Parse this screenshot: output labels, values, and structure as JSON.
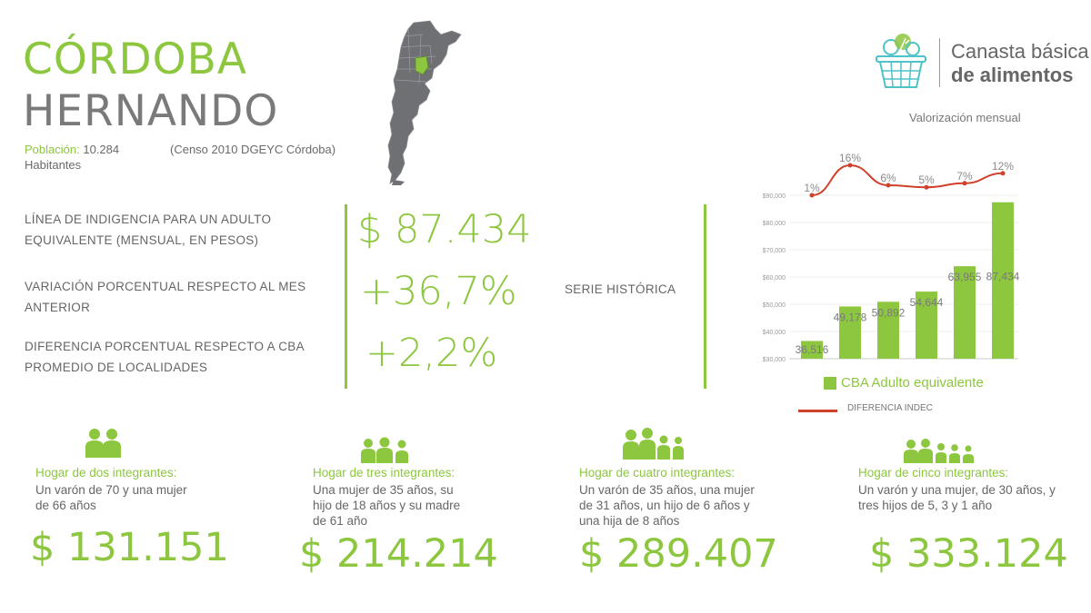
{
  "header": {
    "province": "CÓRDOBA",
    "department": "HERNANDO",
    "population_label": "Población:",
    "population_value": "10.284",
    "population_unit": "Habitantes",
    "census_source": "(Censo 2010 DGEYC Córdoba)"
  },
  "brand": {
    "line1": "Canasta básica",
    "line2": "de alimentos"
  },
  "chart_caption": "Valorización mensual",
  "indicators": [
    {
      "label": "LÍNEA DE INDIGENCIA PARA UN ADULTO EQUIVALENTE (MENSUAL, EN PESOS)",
      "value": "$ 87.434"
    },
    {
      "label": "VARIACIÓN PORCENTUAL RESPECTO AL MES ANTERIOR",
      "value": "+36,7%"
    },
    {
      "label": "DIFERENCIA PORCENTUAL RESPECTO A CBA PROMEDIO DE LOCALIDADES",
      "value": "+2,2%"
    }
  ],
  "serie_historica_label": "SERIE HISTÓRICA",
  "chart_data": {
    "type": "bar",
    "categories": [
      "",
      "",
      "",
      "",
      "",
      ""
    ],
    "series": [
      {
        "name": "CBA Adulto equivalente",
        "values": [
          36516,
          49178,
          50892,
          54644,
          63955,
          87434
        ]
      },
      {
        "name": "DIFERENCIA INDEC",
        "type": "line",
        "values": [
          1,
          16,
          6,
          5,
          7,
          12
        ]
      }
    ],
    "bar_labels": [
      "36,516",
      "49,178",
      "50,892",
      "54,644",
      "63,955",
      "87,434"
    ],
    "line_labels": [
      "1%",
      "16%",
      "6%",
      "5%",
      "7%",
      "12%"
    ],
    "y_ticks": [
      "$30,000",
      "$40,000",
      "$50,000",
      "$60,000",
      "$70,000",
      "$80,000",
      "$90,000"
    ],
    "ylim": [
      30000,
      90000
    ],
    "bar_color": "#8dc63f",
    "line_color": "#d0412b",
    "legend": [
      "CBA Adulto equivalente",
      "DIFERENCIA INDEC"
    ]
  },
  "households": [
    {
      "title": "Hogar de dos integrantes:",
      "description": "Un varón de 70 y una mujer de 66 años",
      "price": "$ 131.151",
      "icon": "two-people-icon"
    },
    {
      "title": "Hogar de tres integrantes:",
      "description": "Una mujer de 35 años, su hijo de 18 años y su madre de 61 año",
      "price": "$ 214.214",
      "icon": "three-people-icon"
    },
    {
      "title": "Hogar de cuatro integrantes:",
      "description": "Un varón de 35 años, una mujer de 31 años, un hijo de 6 años y una hija de 8 años",
      "price": "$ 289.407",
      "icon": "four-people-icon"
    },
    {
      "title": "Hogar de cinco integrantes:",
      "description": "Un varón y una mujer, de 30 años, y tres hijos de 5, 3 y 1 año",
      "price": "$ 333.124",
      "icon": "five-people-icon"
    }
  ]
}
